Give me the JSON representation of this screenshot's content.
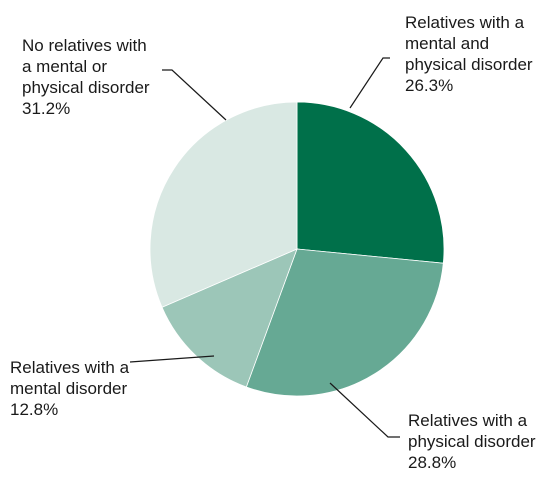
{
  "chart_data": {
    "type": "pie",
    "title": "",
    "slices": [
      {
        "label": [
          "Relatives with a",
          "mental and",
          "physical disorder"
        ],
        "value": 26.3,
        "value_label": "26.3%",
        "color": "#00704a"
      },
      {
        "label": [
          "Relatives with a",
          "physical disorder"
        ],
        "value": 28.8,
        "value_label": "28.8%",
        "color": "#66a994"
      },
      {
        "label": [
          "Relatives with a",
          "mental disorder"
        ],
        "value": 12.8,
        "value_label": "12.8%",
        "color": "#9cc6b8"
      },
      {
        "label": [
          "No relatives with",
          "a mental or",
          "physical disorder"
        ],
        "value": 31.2,
        "value_label": "31.2%",
        "color": "#d9e8e3"
      }
    ],
    "start_angle": "12 o'clock",
    "direction": "clockwise",
    "legend": "none"
  }
}
